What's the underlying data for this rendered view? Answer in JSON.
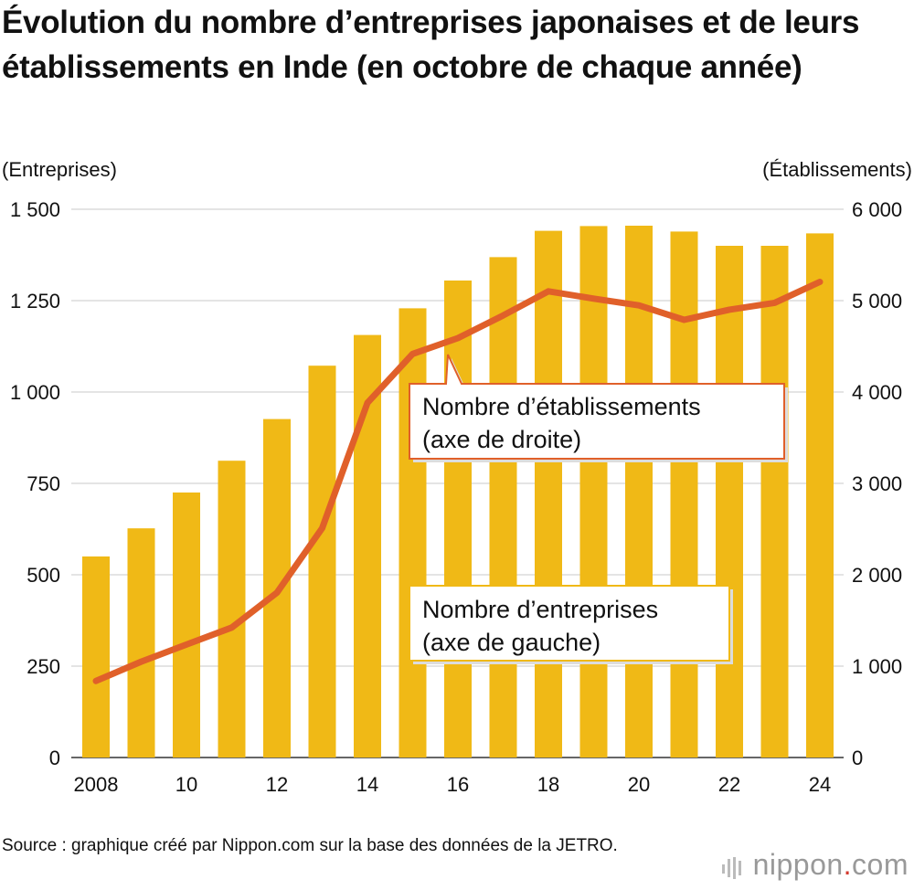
{
  "title": "Évolution du nombre d’entreprises japonaises et de leurs établissements en Inde (en octobre de chaque année)",
  "source": "Source : graphique créé par Nippon.com sur la base des données de la JETRO.",
  "logo": {
    "name": "nippon",
    "dot": ".",
    "suffix": "com"
  },
  "colors": {
    "bars": "#f0b916",
    "line": "#e0602a",
    "grid": "#c8c8c8"
  },
  "chart_data": {
    "type": "bar+line",
    "x": [
      2008,
      2009,
      2010,
      2011,
      2012,
      2013,
      2014,
      2015,
      2016,
      2017,
      2018,
      2019,
      2020,
      2021,
      2022,
      2023,
      2024
    ],
    "xtick_labels": [
      "2008",
      "10",
      "12",
      "14",
      "16",
      "18",
      "20",
      "22",
      "24"
    ],
    "left_axis": {
      "label": "(Entreprises)",
      "ylim": [
        0,
        1500
      ],
      "ticks": [
        0,
        250,
        500,
        750,
        1000,
        1250,
        1500
      ],
      "tick_labels": [
        "0",
        "250",
        "500",
        "750",
        "1 000",
        "1 250",
        "1 500"
      ]
    },
    "right_axis": {
      "label": "(Établissements)",
      "ylim": [
        0,
        6000
      ],
      "ticks": [
        0,
        1000,
        2000,
        3000,
        4000,
        5000,
        6000
      ],
      "tick_labels": [
        "0",
        "1 000",
        "2 000",
        "3 000",
        "4 000",
        "5 000",
        "6 000"
      ]
    },
    "series": [
      {
        "name": "Nombre d’entreprises (axe de gauche)",
        "kind": "bar",
        "axis": "left",
        "values": [
          550,
          627,
          725,
          812,
          926,
          1072,
          1156,
          1229,
          1305,
          1369,
          1441,
          1454,
          1455,
          1439,
          1400,
          1400,
          1434
        ]
      },
      {
        "name": "Nombre d’établissements (axe de droite)",
        "kind": "line",
        "axis": "right",
        "values": [
          838,
          1049,
          1236,
          1422,
          1804,
          2510,
          3881,
          4417,
          4590,
          4838,
          5102,
          5022,
          4948,
          4790,
          4901,
          4976,
          5205
        ]
      }
    ],
    "callouts": {
      "line": {
        "line1": "Nombre d’établissements",
        "line2": "(axe de droite)"
      },
      "bar": {
        "line1": "Nombre d’entreprises",
        "line2": "(axe de gauche)"
      }
    },
    "grid": true
  }
}
